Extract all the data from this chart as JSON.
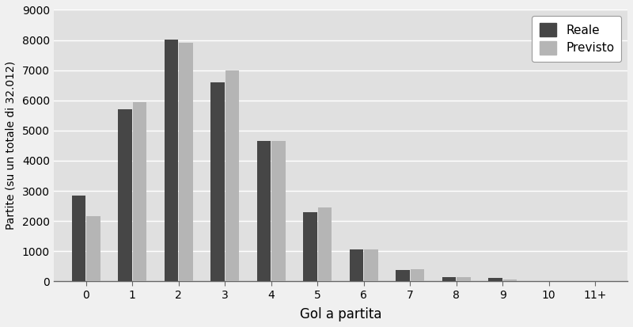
{
  "categories": [
    "0",
    "1",
    "2",
    "3",
    "4",
    "5",
    "6",
    "7",
    "8",
    "9",
    "10",
    "11+"
  ],
  "reale": [
    2850,
    5700,
    8020,
    6600,
    4650,
    2300,
    1060,
    380,
    145,
    110,
    0,
    0
  ],
  "previsto": [
    2170,
    5950,
    7900,
    7000,
    4650,
    2460,
    1060,
    390,
    150,
    60,
    0,
    0
  ],
  "color_reale": "#464646",
  "color_previsto": "#b5b5b5",
  "ylabel": "Partite (su un totale di 32.012)",
  "xlabel": "Gol a partita",
  "ylim": [
    0,
    9000
  ],
  "yticks": [
    0,
    1000,
    2000,
    3000,
    4000,
    5000,
    6000,
    7000,
    8000,
    9000
  ],
  "legend_labels": [
    "Reale",
    "Previsto"
  ],
  "bg_outer": "#f0f0f0",
  "bg_plot": "#e0e0e0",
  "grid_color": "#ffffff",
  "bar_width": 0.3
}
